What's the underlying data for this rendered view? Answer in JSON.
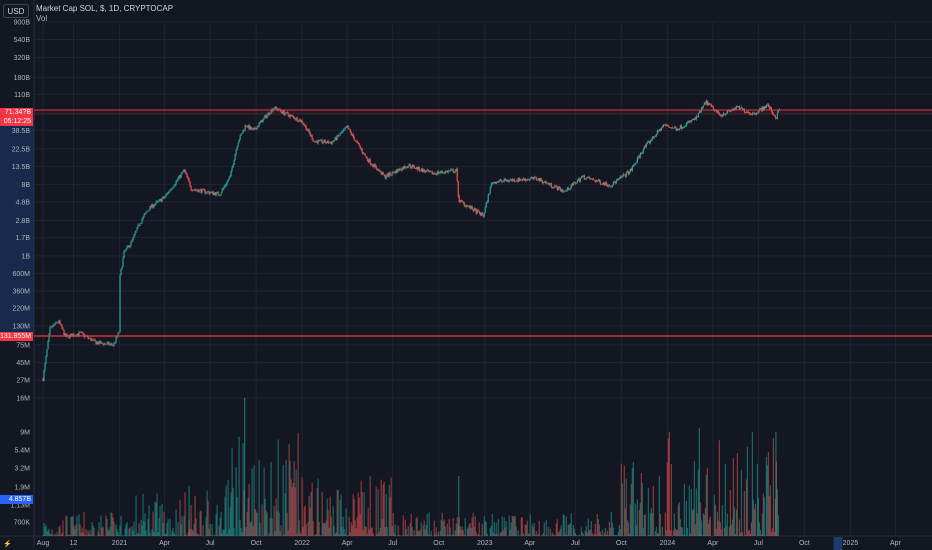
{
  "header": {
    "currency_button": "USD",
    "symbol_title": "Market Cap SOL, $, 1D, CRYPTOCAP",
    "volume_label": "Vol"
  },
  "price_tags": {
    "current_value": "71.34?B",
    "countdown": "05:12:25",
    "level_value": "131.855M",
    "volume_value": "4.857B"
  },
  "footer": {
    "logo_glyph": "⚡"
  },
  "colors": {
    "background": "#131722",
    "grid": "#1f2431",
    "up": "#26a69a",
    "down": "#ef5350",
    "axis_text": "#b2b5be",
    "level_line": "#f23645",
    "tag_red": "#f23645",
    "tag_blue": "#2962ff",
    "range_box": "#1e3a6e"
  },
  "chart_data": {
    "type": "candlestick",
    "title": "Market Cap SOL, $, 1D, CRYPTOCAP",
    "yscale": "log",
    "y_ticks": [
      "900B",
      "540B",
      "320B",
      "180B",
      "110B",
      "65.4B",
      "38.5B",
      "22.5B",
      "13.5B",
      "8B",
      "4.8B",
      "2.8B",
      "1.7B",
      "1B",
      "600M",
      "360M",
      "220M",
      "130M",
      "75M",
      "45M",
      "27M",
      "16M"
    ],
    "volume_ticks": [
      "9M",
      "5.4M",
      "3.2M",
      "1.9M",
      "1.13M",
      "700K"
    ],
    "x_ticks": [
      "Aug",
      "12",
      "2021",
      "Apr",
      "Jul",
      "Oct",
      "2022",
      "Apr",
      "Jul",
      "Oct",
      "2023",
      "Apr",
      "Jul",
      "Oct",
      "2024",
      "Apr",
      "Jul",
      "Oct",
      "2025",
      "Apr"
    ],
    "horizontal_lines": [
      {
        "value": "71.34?B"
      },
      {
        "value": "131.855M"
      }
    ],
    "price_series": [
      [
        "2020-08-01",
        28000000
      ],
      [
        "2020-08-15",
        120000000
      ],
      [
        "2020-09-01",
        150000000
      ],
      [
        "2020-09-15",
        95000000
      ],
      [
        "2020-10-15",
        105000000
      ],
      [
        "2020-11-15",
        80000000
      ],
      [
        "2020-12-20",
        75000000
      ],
      [
        "2020-12-31",
        110000000
      ],
      [
        "2021-01-01",
        500000000
      ],
      [
        "2021-01-10",
        1100000000
      ],
      [
        "2021-01-25",
        1500000000
      ],
      [
        "2021-02-10",
        2600000000
      ],
      [
        "2021-03-01",
        4000000000
      ],
      [
        "2021-04-01",
        5500000000
      ],
      [
        "2021-05-10",
        12000000000
      ],
      [
        "2021-05-25",
        7000000000
      ],
      [
        "2021-06-20",
        6500000000
      ],
      [
        "2021-07-20",
        6000000000
      ],
      [
        "2021-08-10",
        10000000000
      ],
      [
        "2021-08-25",
        27000000000
      ],
      [
        "2021-09-10",
        45000000000
      ],
      [
        "2021-09-25",
        38000000000
      ],
      [
        "2021-11-05",
        75000000000
      ],
      [
        "2021-12-05",
        60000000000
      ],
      [
        "2022-01-01",
        50000000000
      ],
      [
        "2022-01-25",
        28000000000
      ],
      [
        "2022-03-01",
        27000000000
      ],
      [
        "2022-04-01",
        42000000000
      ],
      [
        "2022-05-10",
        17000000000
      ],
      [
        "2022-06-15",
        10000000000
      ],
      [
        "2022-08-01",
        14000000000
      ],
      [
        "2022-09-15",
        11000000000
      ],
      [
        "2022-11-05",
        12000000000
      ],
      [
        "2022-11-10",
        5000000000
      ],
      [
        "2022-12-29",
        3200000000
      ],
      [
        "2023-01-15",
        8500000000
      ],
      [
        "2023-02-15",
        9000000000
      ],
      [
        "2023-04-15",
        9500000000
      ],
      [
        "2023-06-10",
        6500000000
      ],
      [
        "2023-07-15",
        10000000000
      ],
      [
        "2023-09-10",
        7800000000
      ],
      [
        "2023-10-20",
        12000000000
      ],
      [
        "2023-11-15",
        23000000000
      ],
      [
        "2023-12-25",
        45000000000
      ],
      [
        "2024-01-20",
        40000000000
      ],
      [
        "2024-02-28",
        55000000000
      ],
      [
        "2024-03-18",
        88000000000
      ],
      [
        "2024-04-15",
        60000000000
      ],
      [
        "2024-05-20",
        75000000000
      ],
      [
        "2024-06-20",
        62000000000
      ],
      [
        "2024-07-20",
        80000000000
      ],
      [
        "2024-08-05",
        55000000000
      ],
      [
        "2024-08-12",
        71340000000
      ]
    ]
  }
}
